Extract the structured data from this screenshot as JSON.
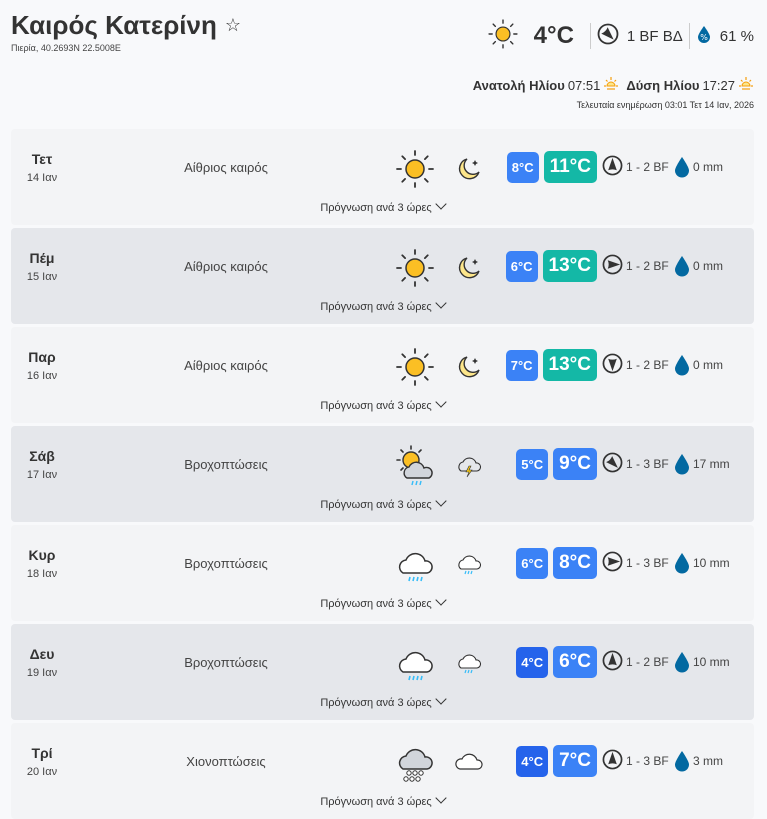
{
  "header": {
    "title": "Καιρός Κατερίνη",
    "subtitle": "Πιερία, 40.2693N 22.5008E",
    "favorite_icon": "star-outline-icon"
  },
  "current": {
    "icon": "sun",
    "temp": "4°C",
    "wind": "1 BF ΒΔ",
    "wind_dir_deg": 315,
    "humidity": "61 %"
  },
  "sun": {
    "sunrise_label": "Ανατολή Ηλίου",
    "sunrise": "07:51",
    "sunset_label": "Δύση Ηλίου",
    "sunset": "17:27"
  },
  "updated": "Τελευταία ενημέρωση 03:01 Τετ 14 Ιαν, 2026",
  "colors": {
    "min_badge": "#3b82f6",
    "min_badge_cold": "#2563eb",
    "max_teal": "#14b8a6",
    "max_blue": "#3b82f6",
    "rain_drop": "#0369a1",
    "sun": "#fbbf24"
  },
  "forecast_link": "Πρόγνωση ανά 3 ώρες",
  "days": [
    {
      "day": "Τετ",
      "date": "14 Ιαν",
      "condition": "Αίθριος καιρός",
      "day_icon": "sun",
      "night_icon": "moon",
      "min": "8°C",
      "max": "11°C",
      "max_color": "#14b8a6",
      "min_color": "#3b82f6",
      "wind": "1 - 2 BF",
      "wind_dir_deg": 180,
      "rain": "0 mm"
    },
    {
      "day": "Πέμ",
      "date": "15 Ιαν",
      "condition": "Αίθριος καιρός",
      "day_icon": "sun",
      "night_icon": "moon",
      "min": "6°C",
      "max": "13°C",
      "max_color": "#14b8a6",
      "min_color": "#3b82f6",
      "wind": "1 - 2 BF",
      "wind_dir_deg": 270,
      "rain": "0 mm"
    },
    {
      "day": "Παρ",
      "date": "16 Ιαν",
      "condition": "Αίθριος καιρός",
      "day_icon": "sun",
      "night_icon": "moon",
      "min": "7°C",
      "max": "13°C",
      "max_color": "#14b8a6",
      "min_color": "#3b82f6",
      "wind": "1 - 2 BF",
      "wind_dir_deg": 0,
      "rain": "0 mm"
    },
    {
      "day": "Σάβ",
      "date": "17 Ιαν",
      "condition": "Βροχοπτώσεις",
      "day_icon": "sun-cloud-rain",
      "night_icon": "cloud-thunder",
      "min": "5°C",
      "max": "9°C",
      "max_color": "#3b82f6",
      "min_color": "#3b82f6",
      "wind": "1 - 3 BF",
      "wind_dir_deg": 315,
      "rain": "17 mm"
    },
    {
      "day": "Κυρ",
      "date": "18 Ιαν",
      "condition": "Βροχοπτώσεις",
      "day_icon": "cloud-rain",
      "night_icon": "cloud-rain-small",
      "min": "6°C",
      "max": "8°C",
      "max_color": "#3b82f6",
      "min_color": "#3b82f6",
      "wind": "1 - 3 BF",
      "wind_dir_deg": 270,
      "rain": "10 mm"
    },
    {
      "day": "Δευ",
      "date": "19 Ιαν",
      "condition": "Βροχοπτώσεις",
      "day_icon": "cloud-rain",
      "night_icon": "cloud-rain-small",
      "min": "4°C",
      "max": "6°C",
      "max_color": "#3b82f6",
      "min_color": "#2563eb",
      "wind": "1 - 2 BF",
      "wind_dir_deg": 180,
      "rain": "10 mm"
    },
    {
      "day": "Τρί",
      "date": "20 Ιαν",
      "condition": "Χιονοπτώσεις",
      "day_icon": "cloud-snow",
      "night_icon": "cloud",
      "min": "4°C",
      "max": "7°C",
      "max_color": "#3b82f6",
      "min_color": "#2563eb",
      "wind": "1 - 3 BF",
      "wind_dir_deg": 180,
      "rain": "3 mm"
    }
  ]
}
